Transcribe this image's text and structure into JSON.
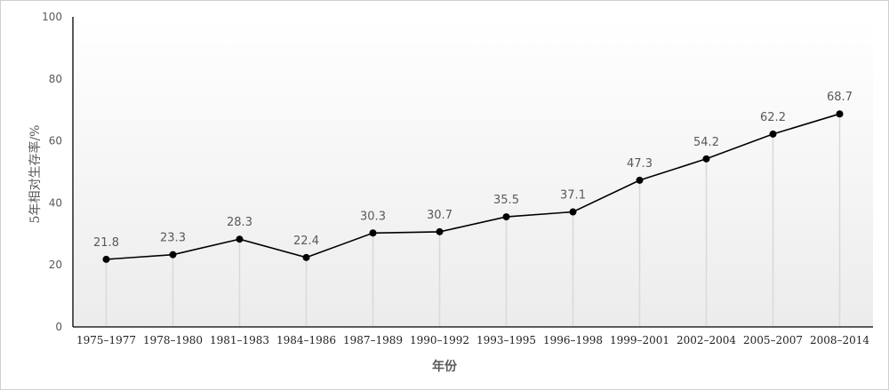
{
  "chart_data": {
    "type": "line",
    "title": "",
    "xlabel": "年份",
    "ylabel": "5年相对生存率/%",
    "ylim": [
      0,
      100
    ],
    "yticks": [
      0,
      20,
      40,
      60,
      80,
      100
    ],
    "categories": [
      "1975–1977",
      "1978–1980",
      "1981–1983",
      "1984–1986",
      "1987–1989",
      "1990–1992",
      "1993–1995",
      "1996–1998",
      "1999–2001",
      "2002–2004",
      "2005–2007",
      "2008–2014"
    ],
    "values": [
      21.8,
      23.3,
      28.3,
      22.4,
      30.3,
      30.7,
      35.5,
      37.1,
      47.3,
      54.2,
      62.2,
      68.7
    ],
    "data_labels": [
      "21.8",
      "23.3",
      "28.3",
      "22.4",
      "30.3",
      "30.7",
      "35.5",
      "37.1",
      "47.3",
      "54.2",
      "62.2",
      "68.7"
    ],
    "drop_lines": true,
    "grid": false,
    "legend": "none",
    "colors": {
      "line": "#000000",
      "marker": "#000000",
      "drop_line": "#d9d9d9",
      "plot_background_top": "#ffffff",
      "plot_background_bottom": "#ececec"
    }
  }
}
